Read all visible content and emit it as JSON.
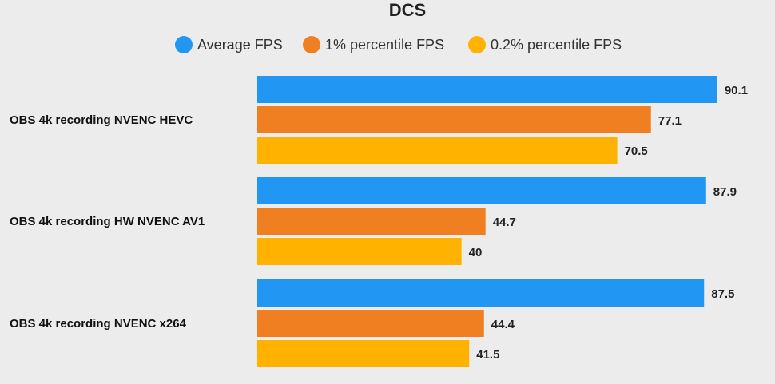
{
  "chart_data": {
    "type": "bar",
    "orientation": "horizontal",
    "title": "DCS",
    "categories": [
      "OBS 4k recording NVENC HEVC",
      "OBS 4k recording HW NVENC AV1",
      "OBS 4k recording NVENC x264"
    ],
    "series": [
      {
        "name": "Average FPS",
        "color": "#2196f3",
        "values": [
          90.1,
          87.9,
          87.5
        ]
      },
      {
        "name": "1% percentile FPS",
        "color": "#f07f22",
        "values": [
          77.1,
          44.7,
          44.4
        ]
      },
      {
        "name": "0.2% percentile FPS",
        "color": "#ffb300",
        "values": [
          70.5,
          40,
          41.5
        ]
      }
    ],
    "xlim": [
      0,
      92
    ],
    "legend_position": "top",
    "grid": false,
    "data_labels": true
  }
}
